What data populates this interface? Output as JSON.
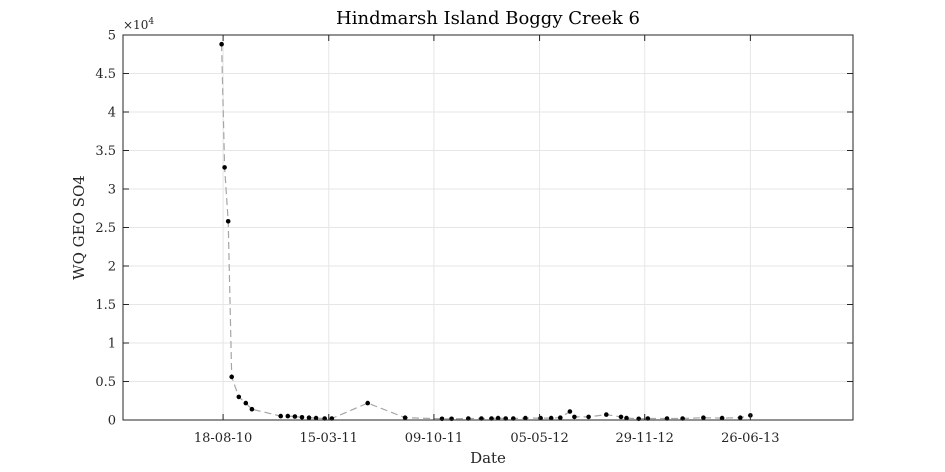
{
  "chart_data": {
    "type": "line",
    "title": "Hindmarsh Island Boggy Creek 6",
    "xlabel": "Date",
    "ylabel": "WQ GEO SO4",
    "y_exponent_label": "×10",
    "y_exponent_power": "4",
    "xlim": [
      "2010-02-01",
      "2014-01-15"
    ],
    "ylim": [
      0,
      50000
    ],
    "x_ticks": [
      "2010-08-18",
      "2011-03-15",
      "2011-10-09",
      "2012-05-05",
      "2012-11-29",
      "2013-06-26"
    ],
    "x_tick_labels": [
      "18-08-10",
      "15-03-11",
      "09-10-11",
      "05-05-12",
      "29-11-12",
      "26-06-13"
    ],
    "y_ticks": [
      0,
      5000,
      10000,
      15000,
      20000,
      25000,
      30000,
      35000,
      40000,
      45000,
      50000
    ],
    "y_tick_labels": [
      "0",
      "0.5",
      "1",
      "1.5",
      "2",
      "2.5",
      "3",
      "3.5",
      "4",
      "4.5",
      "5"
    ],
    "grid": true,
    "line_style": "dashed",
    "line_color": "#a6a6a6",
    "marker_color": "#000000",
    "series": [
      {
        "x": [
          "2010-08-15",
          "2010-08-21",
          "2010-08-28",
          "2010-09-04",
          "2010-09-18",
          "2010-10-02",
          "2010-10-14",
          "2010-12-10",
          "2010-12-24",
          "2011-01-07",
          "2011-01-21",
          "2011-02-04",
          "2011-02-18",
          "2011-03-07",
          "2011-03-21",
          "2011-05-31",
          "2011-08-13",
          "2011-10-25",
          "2011-11-13",
          "2011-12-16",
          "2012-01-11",
          "2012-01-31",
          "2012-02-13",
          "2012-02-28",
          "2012-03-14",
          "2012-04-07",
          "2012-05-07",
          "2012-05-28",
          "2012-06-15",
          "2012-07-04",
          "2012-07-13",
          "2012-08-10",
          "2012-09-14",
          "2012-10-13",
          "2012-10-24",
          "2012-11-17",
          "2012-12-05",
          "2013-01-12",
          "2013-02-12",
          "2013-03-25",
          "2013-05-01",
          "2013-06-06",
          "2013-06-26"
        ],
        "y": [
          48800,
          32800,
          25800,
          5600,
          3000,
          2200,
          1400,
          500,
          500,
          450,
          350,
          300,
          250,
          200,
          200,
          2200,
          300,
          150,
          150,
          200,
          200,
          200,
          250,
          200,
          200,
          250,
          250,
          250,
          300,
          1100,
          400,
          400,
          700,
          400,
          250,
          150,
          200,
          200,
          200,
          300,
          250,
          300,
          600
        ]
      }
    ]
  }
}
